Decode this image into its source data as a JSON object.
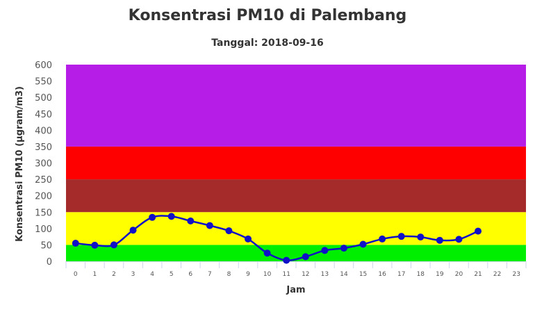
{
  "chart_data": {
    "type": "line",
    "title": "Konsentrasi PM10 di Palembang",
    "subtitle": "Tanggal: 2018-09-16",
    "xlabel": "Jam",
    "ylabel": "Konsentrasi PM10 (µgram/m3)",
    "categories": [
      "0",
      "1",
      "2",
      "3",
      "4",
      "5",
      "6",
      "7",
      "8",
      "9",
      "10",
      "11",
      "12",
      "13",
      "14",
      "15",
      "16",
      "17",
      "18",
      "19",
      "20",
      "21",
      "22",
      "23"
    ],
    "yticks": [
      "0",
      "50",
      "100",
      "150",
      "200",
      "250",
      "300",
      "350",
      "400",
      "450",
      "500",
      "550",
      "600"
    ],
    "ylim": [
      0,
      600
    ],
    "grid": false,
    "series": [
      {
        "color": "#1010c8",
        "x": [
          0,
          1,
          2,
          3,
          4,
          5,
          6,
          7,
          8,
          9,
          10,
          11,
          12,
          13,
          14,
          15,
          16,
          17,
          18,
          19,
          20,
          21
        ],
        "values": [
          55,
          49,
          50,
          95,
          134,
          137,
          123,
          109,
          93,
          68,
          25,
          3,
          14,
          33,
          40,
          52,
          68,
          76,
          74,
          64,
          67,
          92
        ]
      }
    ],
    "bands": [
      {
        "from": 0,
        "to": 50,
        "color": "#00ee00"
      },
      {
        "from": 50,
        "to": 150,
        "color": "#ffff00"
      },
      {
        "from": 150,
        "to": 250,
        "color": "#a52a2a"
      },
      {
        "from": 250,
        "to": 350,
        "color": "#ff0000"
      },
      {
        "from": 350,
        "to": 600,
        "color": "#b61de6"
      }
    ]
  }
}
